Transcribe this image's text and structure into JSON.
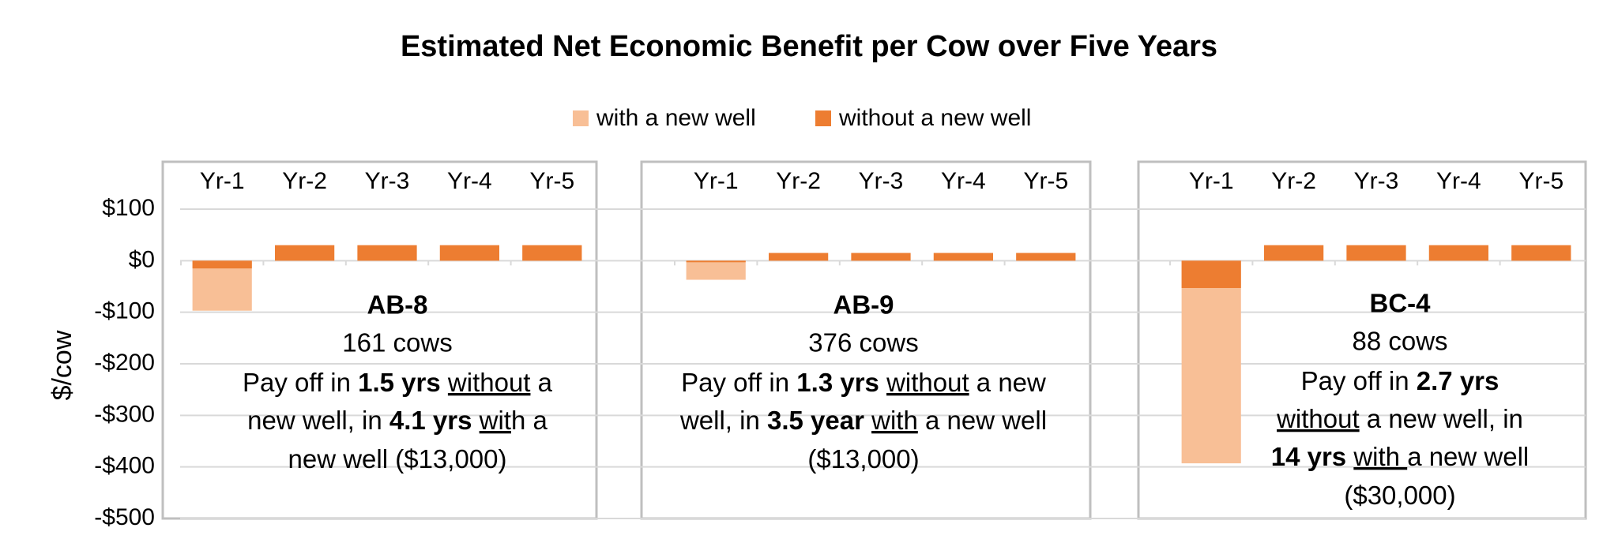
{
  "chart_data": {
    "type": "bar",
    "title": "Estimated Net Economic Benefit per Cow over Five Years",
    "ylabel": "$/cow",
    "ylim": [
      -500,
      100
    ],
    "yticks": [
      {
        "value": 100,
        "label": "$100"
      },
      {
        "value": 0,
        "label": "$0"
      },
      {
        "value": -100,
        "label": "-$100"
      },
      {
        "value": -200,
        "label": "-$200"
      },
      {
        "value": -300,
        "label": "-$300"
      },
      {
        "value": -400,
        "label": "-$400"
      },
      {
        "value": -500,
        "label": "-$500"
      }
    ],
    "grid": true,
    "legend": "top",
    "series": [
      {
        "name": "with a new well",
        "color": "#f8bf96"
      },
      {
        "name": "without a new well",
        "color": "#ed7d31"
      }
    ],
    "panels": [
      {
        "label": "AB-8",
        "subtitle": "161 cows",
        "categories": [
          "Yr-1",
          "Yr-2",
          "Yr-3",
          "Yr-4",
          "Yr-5"
        ],
        "series": [
          {
            "values": [
              -97,
              30,
              30,
              30,
              30
            ]
          },
          {
            "values": [
              -15,
              30,
              30,
              30,
              30
            ]
          }
        ],
        "note": [
          [
            {
              "text": "Pay off in "
            },
            {
              "text": "1.5 yrs",
              "bold": true
            },
            {
              "text": " "
            },
            {
              "text": "without",
              "underline": true
            },
            {
              "text": " a"
            }
          ],
          [
            {
              "text": "new well, in "
            },
            {
              "text": "4.1 yrs",
              "bold": true
            },
            {
              "text": " "
            },
            {
              "text": "wit",
              "underline": true
            },
            {
              "text": "h a"
            }
          ],
          [
            {
              "text": "new well ($13,000)"
            }
          ]
        ]
      },
      {
        "label": "AB-9",
        "subtitle": "376 cows",
        "categories": [
          "Yr-1",
          "Yr-2",
          "Yr-3",
          "Yr-4",
          "Yr-5"
        ],
        "series": [
          {
            "values": [
              -37,
              15,
              15,
              15,
              15
            ]
          },
          {
            "values": [
              -3,
              15,
              15,
              15,
              15
            ]
          }
        ],
        "note": [
          [
            {
              "text": "Pay off in "
            },
            {
              "text": "1.3 yrs",
              "bold": true
            },
            {
              "text": " "
            },
            {
              "text": "without",
              "underline": true
            },
            {
              "text": " a new"
            }
          ],
          [
            {
              "text": "well, in "
            },
            {
              "text": "3.5 year",
              "bold": true
            },
            {
              "text": " "
            },
            {
              "text": "with",
              "underline": true
            },
            {
              "text": " a new well"
            }
          ],
          [
            {
              "text": "($13,000)"
            }
          ]
        ]
      },
      {
        "label": "BC-4",
        "subtitle": "88 cows",
        "categories": [
          "Yr-1",
          "Yr-2",
          "Yr-3",
          "Yr-4",
          "Yr-5"
        ],
        "series": [
          {
            "values": [
              -393,
              30,
              30,
              30,
              30
            ]
          },
          {
            "values": [
              -53,
              30,
              30,
              30,
              30
            ]
          }
        ],
        "note": [
          [
            {
              "text": "Pay off in "
            },
            {
              "text": "2.7 yrs",
              "bold": true
            }
          ],
          [
            {
              "text": "without",
              "underline": true
            },
            {
              "text": " a new well, in"
            }
          ],
          [
            {
              "text": "14 yrs",
              "bold": true
            },
            {
              "text": " "
            },
            {
              "text": "with ",
              "underline": true
            },
            {
              "text": "a new well"
            }
          ],
          [
            {
              "text": "($30,000)"
            }
          ]
        ]
      }
    ]
  }
}
